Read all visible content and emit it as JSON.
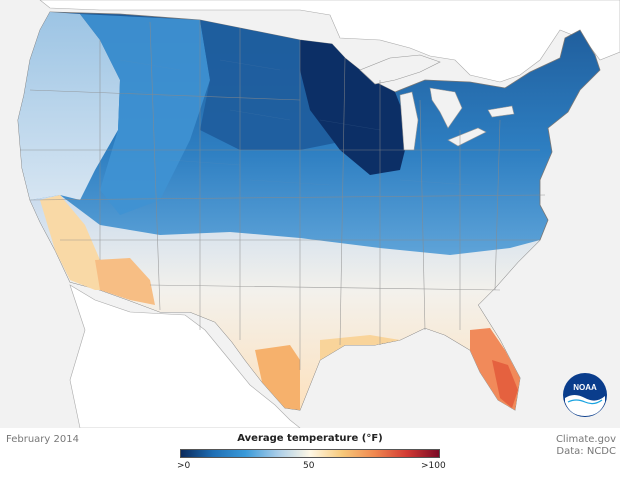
{
  "map": {
    "date_label": "February 2014",
    "credits": {
      "site": "Climate.gov",
      "data": "Data: NCDC"
    },
    "legend": {
      "title": "Average temperature (°F)",
      "ticks": [
        ">0",
        "50",
        ">100"
      ],
      "colors": [
        "#0a2a5c",
        "#1f6fb5",
        "#3a9ad9",
        "#a9cde8",
        "#fff8e6",
        "#f7c97a",
        "#f08850",
        "#d23a33",
        "#7a0a26"
      ]
    },
    "logo": {
      "label": "NOAA"
    },
    "palette": {
      "ocean": "#f2f2f2",
      "land_outside": "#ffffff",
      "boundary": "#8a8a8a",
      "coldest": "#0a2a5c",
      "very_cold": "#1d5591",
      "cold": "#2e79bd",
      "cool": "#4c98d6",
      "mild": "#a8cae6",
      "neutral": "#fdfbf4",
      "warm": "#f9c88f",
      "hot": "#f29a62",
      "hottest": "#e86a4a"
    }
  }
}
